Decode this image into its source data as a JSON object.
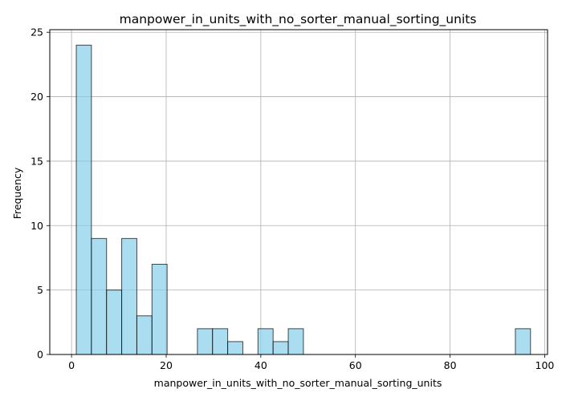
{
  "chart_data": {
    "type": "bar",
    "title": "manpower_in_units_with_no_sorter_manual_sorting_units",
    "xlabel": "manpower_in_units_with_no_sorter_manual_sorting_units",
    "ylabel": "Frequency",
    "xlim": [
      -4.6,
      100.6
    ],
    "ylim": [
      0,
      25.2
    ],
    "xticks": [
      0,
      20,
      40,
      60,
      80,
      100
    ],
    "yticks": [
      0,
      5,
      10,
      15,
      20,
      25
    ],
    "grid": true,
    "bins": [
      {
        "x0": 1.0,
        "x1": 4.2,
        "count": 24
      },
      {
        "x0": 4.2,
        "x1": 7.4,
        "count": 9
      },
      {
        "x0": 7.4,
        "x1": 10.6,
        "count": 5
      },
      {
        "x0": 10.6,
        "x1": 13.8,
        "count": 9
      },
      {
        "x0": 13.8,
        "x1": 17.0,
        "count": 3
      },
      {
        "x0": 17.0,
        "x1": 20.2,
        "count": 7
      },
      {
        "x0": 20.2,
        "x1": 23.4,
        "count": 0
      },
      {
        "x0": 23.4,
        "x1": 26.6,
        "count": 0
      },
      {
        "x0": 26.6,
        "x1": 29.8,
        "count": 2
      },
      {
        "x0": 29.8,
        "x1": 33.0,
        "count": 2
      },
      {
        "x0": 33.0,
        "x1": 36.2,
        "count": 1
      },
      {
        "x0": 36.2,
        "x1": 39.4,
        "count": 0
      },
      {
        "x0": 39.4,
        "x1": 42.6,
        "count": 2
      },
      {
        "x0": 42.6,
        "x1": 45.8,
        "count": 1
      },
      {
        "x0": 45.8,
        "x1": 49.0,
        "count": 2
      },
      {
        "x0": 49.0,
        "x1": 52.2,
        "count": 0
      },
      {
        "x0": 52.2,
        "x1": 55.4,
        "count": 0
      },
      {
        "x0": 55.4,
        "x1": 58.6,
        "count": 0
      },
      {
        "x0": 58.6,
        "x1": 61.8,
        "count": 0
      },
      {
        "x0": 61.8,
        "x1": 65.0,
        "count": 0
      },
      {
        "x0": 65.0,
        "x1": 68.2,
        "count": 0
      },
      {
        "x0": 68.2,
        "x1": 71.4,
        "count": 0
      },
      {
        "x0": 71.4,
        "x1": 74.6,
        "count": 0
      },
      {
        "x0": 74.6,
        "x1": 77.8,
        "count": 0
      },
      {
        "x0": 77.8,
        "x1": 81.0,
        "count": 0
      },
      {
        "x0": 81.0,
        "x1": 84.2,
        "count": 0
      },
      {
        "x0": 84.2,
        "x1": 87.4,
        "count": 0
      },
      {
        "x0": 87.4,
        "x1": 90.6,
        "count": 0
      },
      {
        "x0": 90.6,
        "x1": 93.8,
        "count": 0
      },
      {
        "x0": 93.8,
        "x1": 97.0,
        "count": 2
      }
    ],
    "bar_color": "#87ceeb",
    "bar_edge_color": "#000000"
  }
}
